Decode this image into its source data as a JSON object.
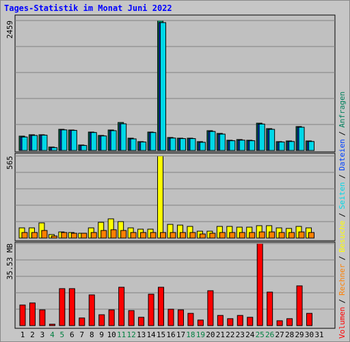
{
  "chart_data": [
    {
      "type": "bar",
      "title": "Tages-Statistik im Monat Juni 2022",
      "legend_separator": "/",
      "ylim": [
        0,
        2459
      ],
      "yticks": [
        2459
      ],
      "grid": true,
      "series": [
        {
          "name": "Anfragen",
          "color": "#00805c",
          "values": [
            272,
            298,
            298,
            65,
            401,
            388,
            104,
            349,
            285,
            388,
            530,
            233,
            168,
            349,
            2459,
            246,
            233,
            233,
            168,
            375,
            323,
            194,
            207,
            194,
            517,
            414,
            168,
            181,
            453,
            181,
            null
          ]
        },
        {
          "name": "Dateien",
          "color": "#0040ff",
          "values": [
            255,
            285,
            290,
            55,
            390,
            380,
            95,
            340,
            275,
            375,
            505,
            220,
            160,
            340,
            2420,
            235,
            225,
            225,
            155,
            360,
            310,
            185,
            195,
            185,
            500,
            400,
            160,
            170,
            440,
            170,
            null
          ]
        },
        {
          "name": "Seiten",
          "color": "#00d8e8",
          "values": [
            255,
            285,
            290,
            55,
            390,
            380,
            95,
            340,
            275,
            375,
            505,
            220,
            160,
            340,
            2420,
            235,
            225,
            225,
            155,
            360,
            310,
            185,
            195,
            185,
            500,
            400,
            160,
            170,
            440,
            170,
            null
          ]
        }
      ]
    },
    {
      "type": "bar",
      "ylim": [
        0,
        565
      ],
      "yticks": [
        565
      ],
      "grid": true,
      "series": [
        {
          "name": "Besuche",
          "color": "#ffff00",
          "values": [
            70,
            70,
            104,
            24,
            42,
            38,
            33,
            70,
            108,
            132,
            113,
            70,
            61,
            61,
            565,
            94,
            89,
            80,
            47,
            47,
            80,
            80,
            75,
            75,
            85,
            85,
            70,
            66,
            80,
            70,
            null
          ]
        },
        {
          "name": "Rechner",
          "color": "#ff8000",
          "values": [
            38,
            38,
            52,
            14,
            38,
            33,
            33,
            38,
            52,
            57,
            52,
            38,
            38,
            38,
            38,
            38,
            38,
            38,
            28,
            33,
            38,
            38,
            38,
            38,
            42,
            42,
            38,
            38,
            42,
            38,
            null
          ]
        }
      ]
    },
    {
      "type": "bar",
      "ylim": [
        0,
        35.53
      ],
      "yticks": [
        {
          "value": 35.53,
          "label": "35.53 MB"
        }
      ],
      "grid": true,
      "categories": [
        "1",
        "2",
        "3",
        "4",
        "5",
        "6",
        "7",
        "8",
        "9",
        "10",
        "11",
        "12",
        "13",
        "14",
        "15",
        "16",
        "17",
        "18",
        "19",
        "20",
        "21",
        "22",
        "23",
        "24",
        "25",
        "26",
        "27",
        "28",
        "29",
        "30",
        "31"
      ],
      "highlight_indices": [
        3,
        4,
        10,
        11,
        17,
        18,
        24,
        25
      ],
      "highlight_color": "#008040",
      "series": [
        {
          "name": "Volumen",
          "color": "#ff0000",
          "values": [
            8.9,
            9.8,
            6.8,
            0.6,
            16,
            16,
            3.3,
            13.3,
            4.7,
            6.8,
            16.6,
            6.5,
            3.6,
            13.6,
            16.6,
            7.1,
            6.8,
            5.3,
            2.4,
            15.1,
            4.4,
            3,
            4.4,
            3.6,
            35.53,
            14.5,
            2.1,
            3,
            17.2,
            5.3,
            null
          ]
        }
      ]
    }
  ]
}
